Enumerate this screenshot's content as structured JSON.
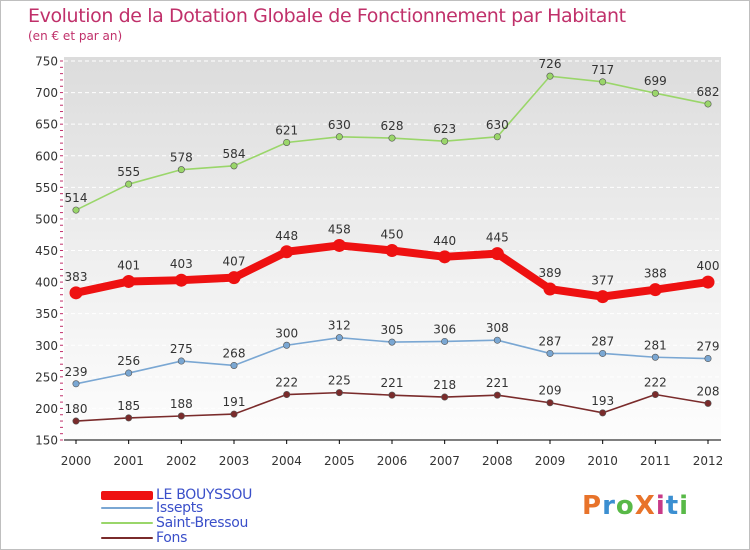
{
  "title": "Evolution de la Dotation Globale de Fonctionnement par Habitant",
  "subtitle": "(en € et par an)",
  "logo": {
    "text": "ProXiti",
    "colors": [
      "#e8732a",
      "#3b8fd1",
      "#58b947",
      "#e8732a",
      "#c83a88",
      "#3b8fd1",
      "#58b947"
    ]
  },
  "chart_data": {
    "type": "line",
    "title": "Evolution de la Dotation Globale de Fonctionnement par Habitant",
    "subtitle": "(en € et par an)",
    "x": [
      "2000",
      "2001",
      "2002",
      "2003",
      "2004",
      "2005",
      "2006",
      "2007",
      "2008",
      "2009",
      "2010",
      "2011",
      "2012"
    ],
    "ylim": [
      150,
      750
    ],
    "yticks": [
      150,
      200,
      250,
      300,
      350,
      400,
      450,
      500,
      550,
      600,
      650,
      700,
      750
    ],
    "grid": "horizontal-dashed",
    "legend_position": "bottom-left",
    "series": [
      {
        "name": "LE BOUYSSOU",
        "color": "#ee1111",
        "emphasis": true,
        "values": [
          383,
          401,
          403,
          407,
          448,
          458,
          450,
          440,
          445,
          389,
          377,
          388,
          400
        ]
      },
      {
        "name": "Issepts",
        "color": "#7aa7d3",
        "values": [
          239,
          256,
          275,
          268,
          300,
          312,
          305,
          306,
          308,
          287,
          287,
          281,
          279
        ]
      },
      {
        "name": "Saint-Bressou",
        "color": "#9ad66a",
        "values": [
          514,
          555,
          578,
          584,
          621,
          630,
          628,
          623,
          630,
          726,
          717,
          699,
          682
        ]
      },
      {
        "name": "Fons",
        "color": "#7a2b2b",
        "values": [
          180,
          185,
          188,
          191,
          222,
          225,
          221,
          218,
          221,
          209,
          193,
          222,
          208
        ]
      }
    ]
  }
}
